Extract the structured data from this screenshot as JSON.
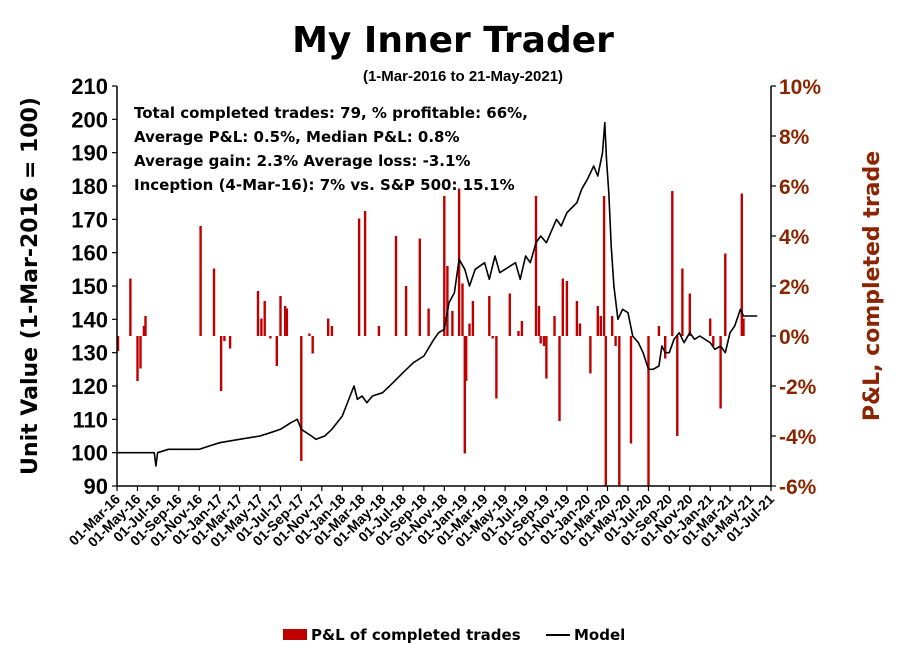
{
  "chart_data": {
    "type": "bar+line",
    "title": "My Inner Trader",
    "subtitle": "(1-Mar-2016 to 21-May-2021)",
    "stats_lines": [
      "Total completed trades: 79, % profitable: 66%,",
      "Average P&L: 0.5%, Median P&L: 0.8%",
      "Average gain: 2.3% Average loss: -3.1%",
      "Inception (4-Mar-16): 7% vs. S&P 500: 15.1%"
    ],
    "y_left": {
      "label": "Unit Value (1-Mar-2016 = 100)",
      "min": 90,
      "max": 210,
      "ticks": [
        90,
        100,
        110,
        120,
        130,
        140,
        150,
        160,
        170,
        180,
        190,
        200,
        210
      ]
    },
    "y_right": {
      "label": "P&L, completed trade",
      "min": -6,
      "max": 10,
      "ticks": [
        -6,
        -4,
        -2,
        0,
        2,
        4,
        6,
        8,
        10
      ],
      "tick_labels": [
        "-6%",
        "-4%",
        "-2%",
        "0%",
        "2%",
        "4%",
        "6%",
        "8%",
        "10%"
      ]
    },
    "x_axis": {
      "start": "2016-03-01",
      "end": "2021-07-01",
      "tick_labels": [
        "01-Mar-16",
        "01-May-16",
        "01-Jul-16",
        "01-Sep-16",
        "01-Nov-16",
        "01-Jan-17",
        "01-Mar-17",
        "01-May-17",
        "01-Jul-17",
        "01-Sep-17",
        "01-Nov-17",
        "01-Jan-18",
        "01-Mar-18",
        "01-May-18",
        "01-Jul-18",
        "01-Sep-18",
        "01-Nov-18",
        "01-Jan-19",
        "01-Mar-19",
        "01-May-19",
        "01-Jul-19",
        "01-Sep-19",
        "01-Nov-19",
        "01-Jan-20",
        "01-Mar-20",
        "01-May-20",
        "01-Jul-20",
        "01-Sep-20",
        "01-Nov-20",
        "01-Jan-21",
        "01-Mar-21",
        "01-May-21",
        "01-Jul-21"
      ],
      "tick_dates": [
        "2016-03-01",
        "2016-05-01",
        "2016-07-01",
        "2016-09-01",
        "2016-11-01",
        "2017-01-01",
        "2017-03-01",
        "2017-05-01",
        "2017-07-01",
        "2017-09-01",
        "2017-11-01",
        "2018-01-01",
        "2018-03-01",
        "2018-05-01",
        "2018-07-01",
        "2018-09-01",
        "2018-11-01",
        "2019-01-01",
        "2019-03-01",
        "2019-05-01",
        "2019-07-01",
        "2019-09-01",
        "2019-11-01",
        "2020-01-01",
        "2020-03-01",
        "2020-05-01",
        "2020-07-01",
        "2020-09-01",
        "2020-11-01",
        "2021-01-01",
        "2021-03-01",
        "2021-05-01",
        "2021-07-01"
      ]
    },
    "series": [
      {
        "name": "P&L of completed trades",
        "type": "bar",
        "axis": "right",
        "color": "#C00000",
        "points": [
          [
            "2016-03-04",
            -0.6
          ],
          [
            "2016-04-10",
            2.3
          ],
          [
            "2016-05-01",
            -1.8
          ],
          [
            "2016-05-10",
            -1.3
          ],
          [
            "2016-05-20",
            0.4
          ],
          [
            "2016-05-25",
            0.8
          ],
          [
            "2016-11-05",
            4.4
          ],
          [
            "2016-12-15",
            2.7
          ],
          [
            "2017-01-05",
            -2.2
          ],
          [
            "2017-01-15",
            -0.2
          ],
          [
            "2017-02-01",
            -0.5
          ],
          [
            "2017-04-25",
            1.8
          ],
          [
            "2017-05-05",
            0.7
          ],
          [
            "2017-05-15",
            1.4
          ],
          [
            "2017-06-01",
            -0.1
          ],
          [
            "2017-06-20",
            -1.2
          ],
          [
            "2017-07-01",
            1.6
          ],
          [
            "2017-07-15",
            1.2
          ],
          [
            "2017-07-20",
            1.1
          ],
          [
            "2017-09-01",
            -5.0
          ],
          [
            "2017-09-25",
            0.1
          ],
          [
            "2017-10-05",
            -0.7
          ],
          [
            "2017-11-20",
            0.7
          ],
          [
            "2017-12-01",
            0.4
          ],
          [
            "2018-02-20",
            4.7
          ],
          [
            "2018-03-10",
            5.0
          ],
          [
            "2018-04-20",
            0.4
          ],
          [
            "2018-06-10",
            4.0
          ],
          [
            "2018-07-10",
            2.0
          ],
          [
            "2018-08-20",
            3.9
          ],
          [
            "2018-09-15",
            1.1
          ],
          [
            "2018-11-01",
            5.6
          ],
          [
            "2018-11-10",
            2.8
          ],
          [
            "2018-11-25",
            1.0
          ],
          [
            "2018-12-15",
            5.9
          ],
          [
            "2018-12-25",
            2.1
          ],
          [
            "2019-01-01",
            -4.7
          ],
          [
            "2019-01-05",
            -1.8
          ],
          [
            "2019-01-15",
            0.5
          ],
          [
            "2019-01-25",
            1.4
          ],
          [
            "2019-03-15",
            1.6
          ],
          [
            "2019-03-25",
            -0.1
          ],
          [
            "2019-04-05",
            -2.5
          ],
          [
            "2019-05-15",
            1.7
          ],
          [
            "2019-06-10",
            0.2
          ],
          [
            "2019-06-20",
            0.6
          ],
          [
            "2019-08-01",
            5.6
          ],
          [
            "2019-08-10",
            1.2
          ],
          [
            "2019-08-15",
            -0.3
          ],
          [
            "2019-08-25",
            -0.4
          ],
          [
            "2019-09-01",
            -1.7
          ],
          [
            "2019-09-25",
            0.8
          ],
          [
            "2019-10-10",
            -3.4
          ],
          [
            "2019-10-20",
            2.3
          ],
          [
            "2019-11-01",
            2.2
          ],
          [
            "2019-12-01",
            1.4
          ],
          [
            "2019-12-10",
            0.5
          ],
          [
            "2020-01-10",
            -1.5
          ],
          [
            "2020-02-01",
            1.2
          ],
          [
            "2020-02-10",
            0.8
          ],
          [
            "2020-02-20",
            5.6
          ],
          [
            "2020-02-25",
            -7.0
          ],
          [
            "2020-03-15",
            0.8
          ],
          [
            "2020-03-25",
            -0.4
          ],
          [
            "2020-04-05",
            -6.0
          ],
          [
            "2020-05-10",
            -4.3
          ],
          [
            "2020-07-01",
            -6.0
          ],
          [
            "2020-08-01",
            0.4
          ],
          [
            "2020-08-20",
            -0.9
          ],
          [
            "2020-09-10",
            5.8
          ],
          [
            "2020-09-25",
            -4.0
          ],
          [
            "2020-10-10",
            2.7
          ],
          [
            "2020-11-01",
            1.7
          ],
          [
            "2021-01-01",
            0.7
          ],
          [
            "2021-01-10",
            -0.4
          ],
          [
            "2021-02-01",
            -2.9
          ],
          [
            "2021-02-15",
            3.3
          ],
          [
            "2021-04-05",
            5.7
          ],
          [
            "2021-04-10",
            0.7
          ]
        ]
      },
      {
        "name": "Model",
        "type": "line",
        "axis": "left",
        "color": "#000000",
        "points": [
          [
            "2016-03-01",
            100
          ],
          [
            "2016-05-01",
            100
          ],
          [
            "2016-06-20",
            100
          ],
          [
            "2016-06-25",
            96
          ],
          [
            "2016-06-30",
            100
          ],
          [
            "2016-08-01",
            101
          ],
          [
            "2016-10-01",
            101
          ],
          [
            "2016-11-01",
            101
          ],
          [
            "2016-12-01",
            102
          ],
          [
            "2017-01-01",
            103
          ],
          [
            "2017-03-01",
            104
          ],
          [
            "2017-05-01",
            105
          ],
          [
            "2017-06-01",
            106
          ],
          [
            "2017-07-01",
            107
          ],
          [
            "2017-08-01",
            109
          ],
          [
            "2017-08-20",
            110
          ],
          [
            "2017-09-01",
            107
          ],
          [
            "2017-10-01",
            105
          ],
          [
            "2017-10-15",
            104
          ],
          [
            "2017-11-10",
            105
          ],
          [
            "2017-12-01",
            107
          ],
          [
            "2018-01-01",
            111
          ],
          [
            "2018-02-05",
            120
          ],
          [
            "2018-02-15",
            116
          ],
          [
            "2018-03-01",
            117
          ],
          [
            "2018-03-15",
            115
          ],
          [
            "2018-04-01",
            117
          ],
          [
            "2018-05-01",
            118
          ],
          [
            "2018-06-01",
            121
          ],
          [
            "2018-07-01",
            124
          ],
          [
            "2018-08-01",
            127
          ],
          [
            "2018-09-01",
            129
          ],
          [
            "2018-10-01",
            134
          ],
          [
            "2018-10-15",
            136
          ],
          [
            "2018-11-01",
            137
          ],
          [
            "2018-11-15",
            145
          ],
          [
            "2018-12-01",
            148
          ],
          [
            "2018-12-15",
            158
          ],
          [
            "2019-01-01",
            155
          ],
          [
            "2019-01-15",
            150
          ],
          [
            "2019-02-01",
            155
          ],
          [
            "2019-03-01",
            157
          ],
          [
            "2019-03-15",
            152
          ],
          [
            "2019-04-01",
            159
          ],
          [
            "2019-04-15",
            154
          ],
          [
            "2019-05-01",
            155
          ],
          [
            "2019-06-01",
            157
          ],
          [
            "2019-06-15",
            152
          ],
          [
            "2019-07-01",
            159
          ],
          [
            "2019-07-15",
            157
          ],
          [
            "2019-08-01",
            163
          ],
          [
            "2019-08-15",
            165
          ],
          [
            "2019-09-01",
            163
          ],
          [
            "2019-10-01",
            170
          ],
          [
            "2019-10-15",
            168
          ],
          [
            "2019-11-01",
            172
          ],
          [
            "2019-12-01",
            175
          ],
          [
            "2019-12-15",
            179
          ],
          [
            "2020-01-01",
            182
          ],
          [
            "2020-01-20",
            186
          ],
          [
            "2020-02-01",
            183
          ],
          [
            "2020-02-15",
            190
          ],
          [
            "2020-02-22",
            199
          ],
          [
            "2020-02-27",
            188
          ],
          [
            "2020-03-05",
            178
          ],
          [
            "2020-03-12",
            162
          ],
          [
            "2020-03-20",
            150
          ],
          [
            "2020-04-01",
            140
          ],
          [
            "2020-04-15",
            143
          ],
          [
            "2020-05-01",
            142
          ],
          [
            "2020-05-15",
            135
          ],
          [
            "2020-06-01",
            133
          ],
          [
            "2020-06-15",
            130
          ],
          [
            "2020-07-01",
            125
          ],
          [
            "2020-07-15",
            125
          ],
          [
            "2020-08-01",
            126
          ],
          [
            "2020-08-10",
            132
          ],
          [
            "2020-08-20",
            130
          ],
          [
            "2020-09-01",
            130
          ],
          [
            "2020-09-15",
            134
          ],
          [
            "2020-10-01",
            136
          ],
          [
            "2020-10-15",
            133
          ],
          [
            "2020-11-01",
            136
          ],
          [
            "2020-11-15",
            134
          ],
          [
            "2020-12-01",
            135
          ],
          [
            "2021-01-01",
            133
          ],
          [
            "2021-01-15",
            131
          ],
          [
            "2021-02-01",
            132
          ],
          [
            "2021-02-15",
            130
          ],
          [
            "2021-03-01",
            136
          ],
          [
            "2021-03-15",
            138
          ],
          [
            "2021-04-01",
            143
          ],
          [
            "2021-04-10",
            141
          ],
          [
            "2021-04-20",
            141
          ],
          [
            "2021-05-21",
            141
          ]
        ]
      }
    ],
    "legend": {
      "placement": "bottom",
      "items": [
        {
          "label": "P&L of completed trades",
          "marker": "bar",
          "color": "#C00000"
        },
        {
          "label": "Model",
          "marker": "line",
          "color": "#000000"
        }
      ]
    },
    "grid": false
  }
}
